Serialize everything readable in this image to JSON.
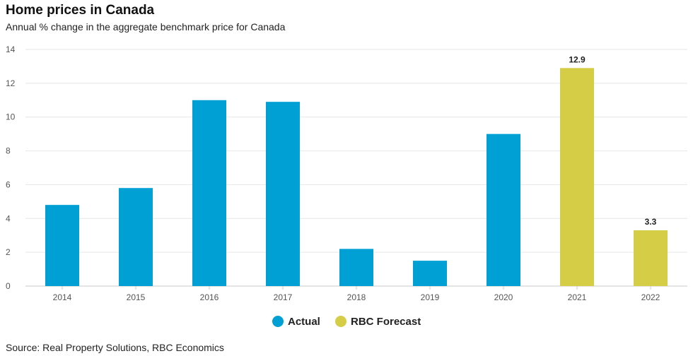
{
  "chart_data": {
    "type": "bar",
    "title": "Home prices in Canada",
    "subtitle": "Annual % change in the aggregate benchmark price for Canada",
    "source": "Source: Real Property Solutions, RBC Economics",
    "categories": [
      "2014",
      "2015",
      "2016",
      "2017",
      "2018",
      "2019",
      "2020",
      "2021",
      "2022"
    ],
    "values": [
      4.8,
      5.8,
      11.0,
      10.9,
      2.2,
      1.5,
      9.0,
      12.9,
      3.3
    ],
    "groups": [
      "Actual",
      "Actual",
      "Actual",
      "Actual",
      "Actual",
      "Actual",
      "Actual",
      "RBC Forecast",
      "RBC Forecast"
    ],
    "data_labels": [
      "",
      "",
      "",
      "",
      "",
      "",
      "",
      "12.9",
      "3.3"
    ],
    "ylim": [
      0,
      14
    ],
    "yticks": [
      0,
      2,
      4,
      6,
      8,
      10,
      12,
      14
    ],
    "grid": true,
    "legend": {
      "position": "bottom-center",
      "entries": [
        {
          "name": "Actual",
          "color": "#009fd4"
        },
        {
          "name": "RBC Forecast",
          "color": "#d6cd47"
        }
      ]
    }
  }
}
